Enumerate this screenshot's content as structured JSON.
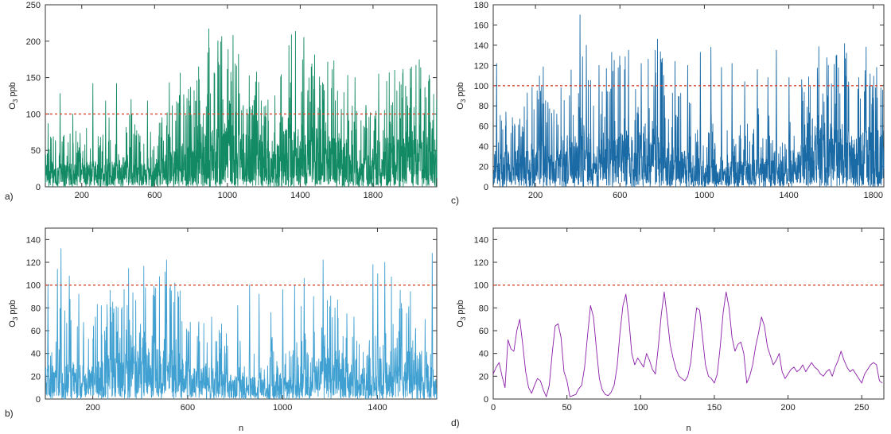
{
  "chart_data": [
    {
      "id": "a",
      "type": "line",
      "panel_label": "a)",
      "ylabel_main": "O",
      "ylabel_sub": "3",
      "ylabel_unit": " ppb",
      "xlabel": "",
      "xlim": [
        0,
        2150
      ],
      "ylim": [
        0,
        250
      ],
      "xticks": [
        200,
        600,
        1000,
        1400,
        1800
      ],
      "yticks": [
        0,
        50,
        100,
        150,
        200,
        250
      ],
      "threshold": 100,
      "threshold_color": "#d9472b",
      "series_color": "#128a63",
      "n_points": 2150,
      "baseline": 35,
      "spikes": [
        [
          80,
          128
        ],
        [
          150,
          100
        ],
        [
          260,
          142
        ],
        [
          330,
          118
        ],
        [
          390,
          142
        ],
        [
          470,
          120
        ],
        [
          560,
          118
        ],
        [
          640,
          95
        ],
        [
          680,
          143
        ],
        [
          760,
          108
        ],
        [
          860,
          82
        ],
        [
          950,
          96
        ],
        [
          1010,
          118
        ],
        [
          1030,
          208
        ],
        [
          1060,
          182
        ],
        [
          1150,
          125
        ],
        [
          1260,
          125
        ],
        [
          1340,
          122
        ],
        [
          1440,
          118
        ],
        [
          1540,
          88
        ],
        [
          1660,
          153
        ],
        [
          1700,
          150
        ],
        [
          1760,
          112
        ],
        [
          1830,
          155
        ],
        [
          1900,
          112
        ],
        [
          2000,
          108
        ],
        [
          2110,
          108
        ]
      ],
      "seed": 11
    },
    {
      "id": "b",
      "type": "line",
      "panel_label": "b)",
      "ylabel_main": "O",
      "ylabel_sub": "3",
      "ylabel_unit": " ppb",
      "xlabel": "n",
      "xlim": [
        0,
        1650
      ],
      "ylim": [
        0,
        150
      ],
      "xticks": [
        200,
        600,
        1000,
        1400
      ],
      "yticks": [
        0,
        20,
        40,
        60,
        80,
        100,
        120,
        140
      ],
      "threshold": 100,
      "threshold_color": "#d9472b",
      "series_color": "#3fa0d1",
      "n_points": 1650,
      "baseline": 22,
      "spikes": [
        [
          10,
          100
        ],
        [
          50,
          114
        ],
        [
          65,
          132
        ],
        [
          100,
          108
        ],
        [
          140,
          92
        ],
        [
          210,
          72
        ],
        [
          260,
          70
        ],
        [
          300,
          58
        ],
        [
          360,
          56
        ],
        [
          420,
          72
        ],
        [
          460,
          90
        ],
        [
          510,
          122
        ],
        [
          530,
          95
        ],
        [
          600,
          60
        ],
        [
          640,
          55
        ],
        [
          700,
          72
        ],
        [
          760,
          40
        ],
        [
          810,
          82
        ],
        [
          860,
          100
        ],
        [
          900,
          92
        ],
        [
          950,
          76
        ],
        [
          1000,
          96
        ],
        [
          1050,
          100
        ],
        [
          1090,
          106
        ],
        [
          1130,
          90
        ],
        [
          1170,
          122
        ],
        [
          1220,
          80
        ],
        [
          1300,
          72
        ],
        [
          1380,
          118
        ],
        [
          1400,
          110
        ],
        [
          1430,
          120
        ],
        [
          1500,
          84
        ],
        [
          1560,
          62
        ],
        [
          1600,
          70
        ],
        [
          1630,
          128
        ]
      ],
      "seed": 23
    },
    {
      "id": "c",
      "type": "line",
      "panel_label": "c)",
      "ylabel_main": "O",
      "ylabel_sub": "3",
      "ylabel_unit": " ppb",
      "xlabel": "",
      "xlim": [
        0,
        1850
      ],
      "ylim": [
        0,
        180
      ],
      "xticks": [
        200,
        600,
        1000,
        1400,
        1800
      ],
      "yticks": [
        0,
        20,
        40,
        60,
        80,
        100,
        120,
        140,
        160,
        180
      ],
      "threshold": 100,
      "threshold_color": "#d9472b",
      "series_color": "#1a6aa6",
      "n_points": 1850,
      "baseline": 24,
      "spikes": [
        [
          15,
          122
        ],
        [
          100,
          62
        ],
        [
          160,
          74
        ],
        [
          230,
          82
        ],
        [
          300,
          72
        ],
        [
          360,
          90
        ],
        [
          410,
          170
        ],
        [
          440,
          140
        ],
        [
          500,
          120
        ],
        [
          560,
          133
        ],
        [
          600,
          120
        ],
        [
          640,
          135
        ],
        [
          700,
          122
        ],
        [
          760,
          100
        ],
        [
          810,
          90
        ],
        [
          860,
          124
        ],
        [
          920,
          120
        ],
        [
          980,
          133
        ],
        [
          1030,
          138
        ],
        [
          1080,
          118
        ],
        [
          1130,
          122
        ],
        [
          1190,
          104
        ],
        [
          1250,
          116
        ],
        [
          1300,
          108
        ],
        [
          1340,
          135
        ],
        [
          1400,
          108
        ],
        [
          1460,
          106
        ],
        [
          1560,
          92
        ],
        [
          1620,
          82
        ],
        [
          1680,
          100
        ],
        [
          1730,
          108
        ],
        [
          1760,
          115
        ],
        [
          1810,
          98
        ]
      ],
      "seed": 37
    },
    {
      "id": "d",
      "type": "line",
      "panel_label": "d)",
      "ylabel_main": "O",
      "ylabel_sub": "3",
      "ylabel_unit": " ppb",
      "xlabel": "n",
      "xlim": [
        0,
        265
      ],
      "ylim": [
        0,
        150
      ],
      "xticks": [
        0,
        50,
        100,
        150,
        200,
        250
      ],
      "yticks": [
        0,
        20,
        40,
        60,
        80,
        100,
        120,
        140
      ],
      "threshold": 100,
      "threshold_color": "#d9472b",
      "series_color": "#8b1fa8",
      "x": [
        0,
        2,
        4,
        6,
        8,
        10,
        12,
        14,
        16,
        18,
        20,
        22,
        24,
        26,
        28,
        30,
        32,
        34,
        36,
        38,
        40,
        42,
        44,
        46,
        48,
        50,
        52,
        54,
        56,
        58,
        60,
        62,
        64,
        66,
        68,
        70,
        72,
        74,
        76,
        78,
        80,
        82,
        84,
        86,
        88,
        90,
        92,
        94,
        96,
        98,
        100,
        102,
        104,
        106,
        108,
        110,
        112,
        114,
        116,
        118,
        120,
        122,
        124,
        126,
        128,
        130,
        132,
        134,
        136,
        138,
        140,
        142,
        144,
        146,
        148,
        150,
        152,
        154,
        156,
        158,
        160,
        162,
        164,
        166,
        168,
        170,
        172,
        174,
        176,
        178,
        180,
        182,
        184,
        186,
        188,
        190,
        192,
        194,
        196,
        198,
        200,
        202,
        204,
        206,
        208,
        210,
        212,
        214,
        216,
        218,
        220,
        222,
        224,
        226,
        228,
        230,
        232,
        234,
        236,
        238,
        240,
        242,
        244,
        246,
        248,
        250,
        252,
        254,
        256,
        258,
        260,
        262,
        264
      ],
      "values": [
        22,
        28,
        32,
        20,
        10,
        52,
        44,
        42,
        60,
        70,
        48,
        24,
        10,
        5,
        12,
        18,
        16,
        8,
        2,
        12,
        40,
        64,
        66,
        54,
        24,
        16,
        2,
        3,
        4,
        9,
        12,
        28,
        56,
        82,
        72,
        44,
        18,
        8,
        4,
        3,
        6,
        12,
        28,
        58,
        82,
        92,
        70,
        40,
        30,
        36,
        32,
        28,
        40,
        34,
        26,
        22,
        46,
        74,
        94,
        72,
        48,
        36,
        26,
        20,
        18,
        16,
        20,
        32,
        58,
        80,
        78,
        54,
        30,
        20,
        18,
        14,
        22,
        46,
        76,
        94,
        80,
        54,
        42,
        48,
        50,
        40,
        14,
        20,
        30,
        46,
        58,
        72,
        64,
        46,
        38,
        30,
        34,
        40,
        24,
        18,
        22,
        26,
        28,
        24,
        26,
        30,
        24,
        28,
        32,
        28,
        26,
        22,
        20,
        24,
        26,
        20,
        28,
        34,
        42,
        34,
        28,
        24,
        26,
        22,
        18,
        14,
        22,
        26,
        30,
        32,
        30,
        16,
        14
      ]
    }
  ]
}
